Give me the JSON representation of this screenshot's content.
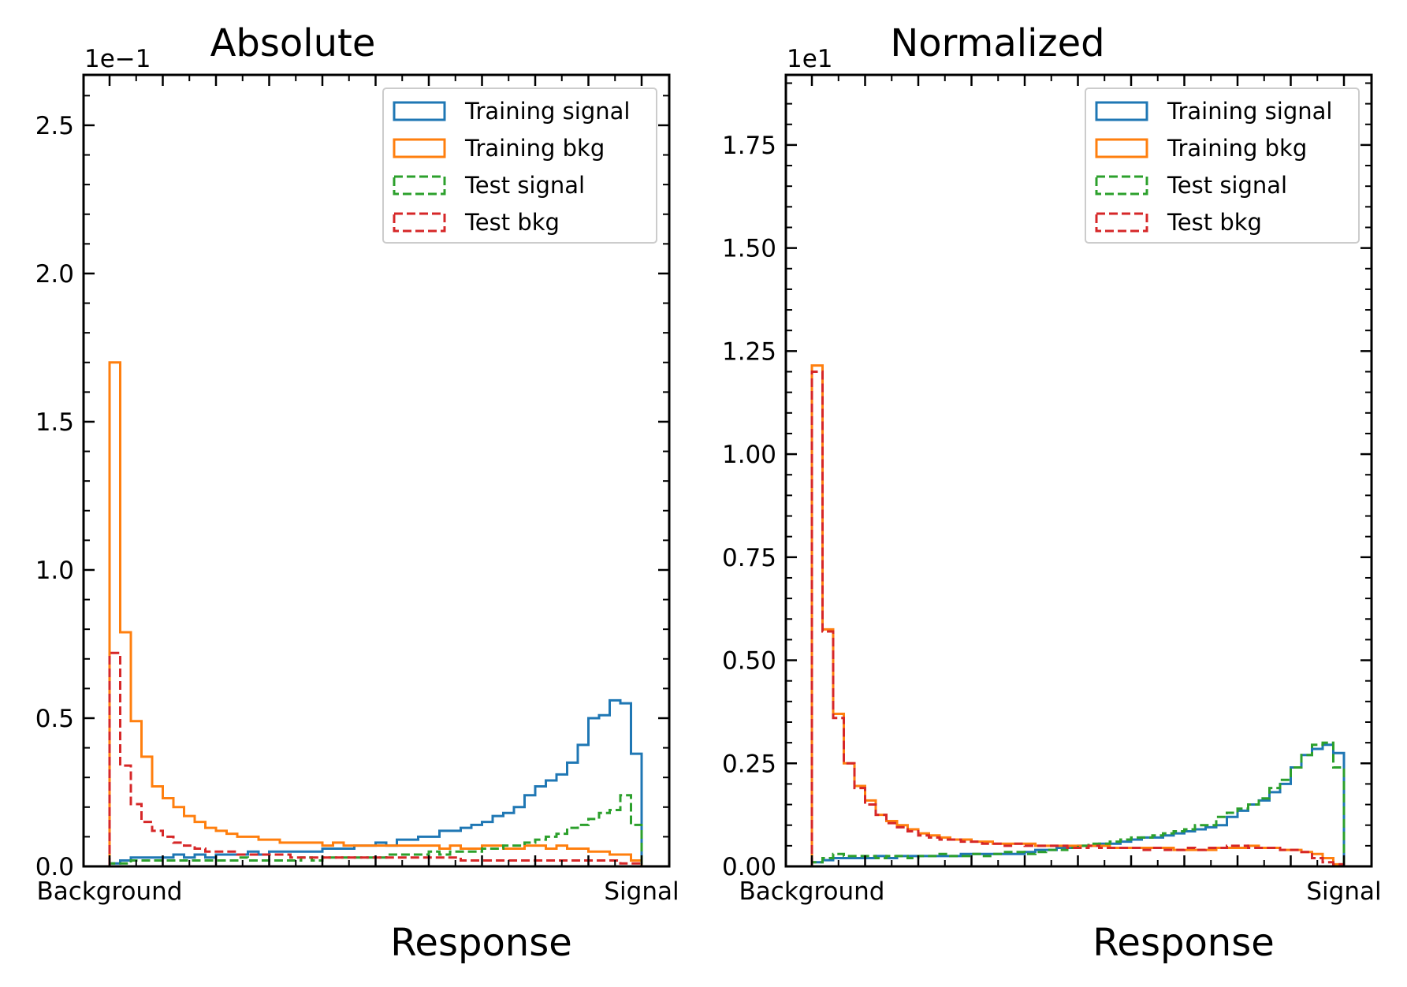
{
  "chart_data": [
    {
      "type": "histogram",
      "title": "Absolute",
      "xlabel": "Response",
      "ylabel": "",
      "xtick_labels": [
        "Background",
        "Signal"
      ],
      "y_offset_label": "1e−1",
      "ylim": [
        0,
        2.67
      ],
      "yticks": [
        0.0,
        0.5,
        1.0,
        1.5,
        2.0,
        2.5
      ],
      "ytick_labels": [
        "0.0",
        "0.5",
        "1.0",
        "1.5",
        "2.0",
        "2.5"
      ],
      "bins": 50,
      "legend_position": "top-right",
      "series": [
        {
          "name": "Training signal",
          "color": "#1f77b4",
          "linestyle": "solid",
          "values": [
            0.01,
            0.02,
            0.03,
            0.03,
            0.03,
            0.03,
            0.04,
            0.03,
            0.04,
            0.03,
            0.04,
            0.04,
            0.04,
            0.05,
            0.04,
            0.05,
            0.05,
            0.05,
            0.05,
            0.05,
            0.06,
            0.06,
            0.06,
            0.07,
            0.07,
            0.08,
            0.07,
            0.09,
            0.09,
            0.1,
            0.1,
            0.12,
            0.12,
            0.13,
            0.14,
            0.15,
            0.17,
            0.18,
            0.2,
            0.24,
            0.27,
            0.29,
            0.31,
            0.35,
            0.41,
            0.5,
            0.51,
            0.56,
            0.55,
            0.38
          ]
        },
        {
          "name": "Training bkg",
          "color": "#ff7f0e",
          "linestyle": "solid",
          "values": [
            1.7,
            0.79,
            0.49,
            0.37,
            0.27,
            0.23,
            0.2,
            0.17,
            0.15,
            0.13,
            0.12,
            0.11,
            0.1,
            0.1,
            0.09,
            0.09,
            0.08,
            0.08,
            0.08,
            0.08,
            0.07,
            0.08,
            0.07,
            0.07,
            0.07,
            0.07,
            0.07,
            0.07,
            0.07,
            0.07,
            0.07,
            0.06,
            0.07,
            0.06,
            0.06,
            0.07,
            0.07,
            0.06,
            0.06,
            0.07,
            0.07,
            0.06,
            0.07,
            0.06,
            0.06,
            0.05,
            0.05,
            0.04,
            0.04,
            0.02
          ]
        },
        {
          "name": "Test signal",
          "color": "#2ca02c",
          "linestyle": "dashed",
          "values": [
            0.01,
            0.01,
            0.02,
            0.02,
            0.02,
            0.02,
            0.02,
            0.02,
            0.02,
            0.02,
            0.02,
            0.02,
            0.03,
            0.02,
            0.02,
            0.02,
            0.02,
            0.02,
            0.03,
            0.02,
            0.03,
            0.03,
            0.03,
            0.03,
            0.03,
            0.03,
            0.04,
            0.04,
            0.04,
            0.04,
            0.05,
            0.04,
            0.05,
            0.05,
            0.05,
            0.06,
            0.06,
            0.07,
            0.07,
            0.08,
            0.09,
            0.1,
            0.11,
            0.13,
            0.14,
            0.16,
            0.18,
            0.19,
            0.24,
            0.14
          ]
        },
        {
          "name": "Test bkg",
          "color": "#d62728",
          "linestyle": "dashed",
          "values": [
            0.72,
            0.34,
            0.21,
            0.15,
            0.12,
            0.1,
            0.08,
            0.07,
            0.06,
            0.05,
            0.05,
            0.05,
            0.04,
            0.04,
            0.04,
            0.04,
            0.04,
            0.03,
            0.03,
            0.03,
            0.03,
            0.03,
            0.03,
            0.03,
            0.03,
            0.03,
            0.03,
            0.03,
            0.03,
            0.03,
            0.03,
            0.03,
            0.03,
            0.02,
            0.02,
            0.02,
            0.02,
            0.02,
            0.02,
            0.02,
            0.02,
            0.02,
            0.02,
            0.02,
            0.02,
            0.02,
            0.02,
            0.02,
            0.01,
            0.01
          ]
        }
      ]
    },
    {
      "type": "histogram",
      "title": "Normalized",
      "xlabel": "Response",
      "ylabel": "",
      "xtick_labels": [
        "Background",
        "Signal"
      ],
      "y_offset_label": "1e1",
      "ylim": [
        0,
        1.92
      ],
      "yticks": [
        0.0,
        0.25,
        0.5,
        0.75,
        1.0,
        1.25,
        1.5,
        1.75
      ],
      "ytick_labels": [
        "0.00",
        "0.25",
        "0.50",
        "0.75",
        "1.00",
        "1.25",
        "1.50",
        "1.75"
      ],
      "bins": 50,
      "legend_position": "top-right",
      "series": [
        {
          "name": "Training signal",
          "color": "#1f77b4",
          "linestyle": "solid",
          "values": [
            0.01,
            0.015,
            0.02,
            0.02,
            0.02,
            0.02,
            0.025,
            0.02,
            0.025,
            0.025,
            0.025,
            0.025,
            0.025,
            0.025,
            0.03,
            0.03,
            0.03,
            0.03,
            0.03,
            0.03,
            0.035,
            0.04,
            0.04,
            0.045,
            0.045,
            0.05,
            0.05,
            0.055,
            0.055,
            0.06,
            0.065,
            0.07,
            0.07,
            0.075,
            0.08,
            0.085,
            0.09,
            0.095,
            0.1,
            0.12,
            0.135,
            0.15,
            0.16,
            0.18,
            0.2,
            0.24,
            0.27,
            0.285,
            0.295,
            0.275
          ]
        },
        {
          "name": "Training bkg",
          "color": "#ff7f0e",
          "linestyle": "solid",
          "values": [
            1.215,
            0.575,
            0.37,
            0.25,
            0.195,
            0.16,
            0.125,
            0.11,
            0.1,
            0.09,
            0.08,
            0.075,
            0.07,
            0.065,
            0.065,
            0.06,
            0.06,
            0.055,
            0.055,
            0.055,
            0.055,
            0.05,
            0.05,
            0.05,
            0.05,
            0.05,
            0.05,
            0.05,
            0.045,
            0.045,
            0.045,
            0.045,
            0.045,
            0.045,
            0.04,
            0.04,
            0.04,
            0.04,
            0.045,
            0.045,
            0.045,
            0.05,
            0.045,
            0.045,
            0.04,
            0.04,
            0.035,
            0.03,
            0.02,
            0.005
          ]
        },
        {
          "name": "Test signal",
          "color": "#2ca02c",
          "linestyle": "dashed",
          "values": [
            0.01,
            0.02,
            0.03,
            0.025,
            0.025,
            0.025,
            0.02,
            0.025,
            0.025,
            0.02,
            0.025,
            0.025,
            0.03,
            0.025,
            0.025,
            0.03,
            0.025,
            0.03,
            0.035,
            0.035,
            0.03,
            0.035,
            0.04,
            0.04,
            0.045,
            0.05,
            0.055,
            0.055,
            0.06,
            0.065,
            0.07,
            0.07,
            0.075,
            0.08,
            0.085,
            0.09,
            0.1,
            0.1,
            0.12,
            0.13,
            0.14,
            0.15,
            0.165,
            0.19,
            0.21,
            0.24,
            0.27,
            0.295,
            0.3,
            0.24
          ]
        },
        {
          "name": "Test bkg",
          "color": "#d62728",
          "linestyle": "dashed",
          "values": [
            1.2,
            0.57,
            0.36,
            0.25,
            0.19,
            0.15,
            0.125,
            0.105,
            0.095,
            0.085,
            0.075,
            0.07,
            0.065,
            0.065,
            0.06,
            0.06,
            0.055,
            0.055,
            0.05,
            0.055,
            0.05,
            0.05,
            0.05,
            0.05,
            0.045,
            0.045,
            0.05,
            0.045,
            0.045,
            0.045,
            0.045,
            0.04,
            0.045,
            0.04,
            0.04,
            0.045,
            0.04,
            0.045,
            0.045,
            0.05,
            0.05,
            0.045,
            0.045,
            0.045,
            0.04,
            0.04,
            0.035,
            0.02,
            0.01,
            0.005
          ]
        }
      ]
    }
  ]
}
